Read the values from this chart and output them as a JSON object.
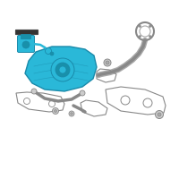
{
  "bg_color": "#ffffff",
  "highlight_color": "#2ab8d8",
  "highlight_edge": "#1a8aaa",
  "highlight_dark": "#1890aa",
  "gray_color": "#888888",
  "dark_color": "#333333",
  "light_gray": "#cccccc",
  "mid_gray": "#aaaaaa",
  "figsize": [
    2.0,
    2.0
  ],
  "dpi": 100
}
